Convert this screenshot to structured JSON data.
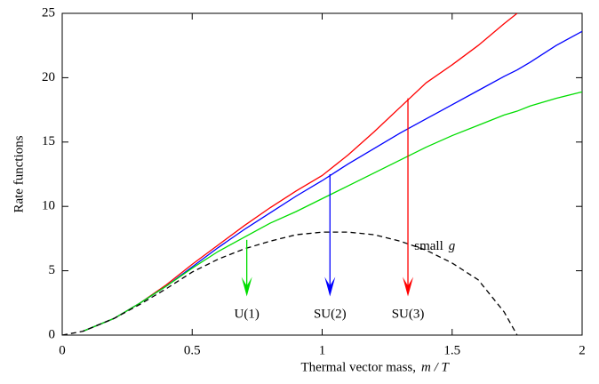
{
  "chart_data": {
    "type": "line",
    "ylabel": "Rate functions",
    "xlabel": "Thermal vector mass,",
    "xlabel_var": "m / T",
    "x": [
      0,
      0.08,
      0.2,
      0.3,
      0.4,
      0.5,
      0.6,
      0.7,
      0.8,
      0.9,
      1.0,
      1.1,
      1.2,
      1.3,
      1.4,
      1.5,
      1.6,
      1.7,
      1.75,
      1.8,
      1.9,
      2.0
    ],
    "series": [
      {
        "name": "SU(3)",
        "color": "#ff0000",
        "dashed": false,
        "values": [
          null,
          0.3,
          1.3,
          2.5,
          3.9,
          5.5,
          7.0,
          8.5,
          9.9,
          11.2,
          12.4,
          14.0,
          15.8,
          17.7,
          19.6,
          21.0,
          22.5,
          24.2,
          25.0,
          null,
          null,
          null
        ]
      },
      {
        "name": "SU(2)",
        "color": "#0000ff",
        "dashed": false,
        "values": [
          null,
          0.3,
          1.3,
          2.5,
          3.8,
          5.3,
          6.8,
          8.2,
          9.5,
          10.8,
          12.0,
          13.3,
          14.5,
          15.7,
          16.8,
          17.9,
          19.0,
          20.1,
          20.6,
          21.2,
          22.5,
          23.6
        ]
      },
      {
        "name": "U(1)",
        "color": "#00dd00",
        "dashed": false,
        "values": [
          null,
          0.3,
          1.3,
          2.5,
          3.8,
          5.2,
          6.5,
          7.6,
          8.7,
          9.6,
          10.6,
          11.6,
          12.6,
          13.6,
          14.6,
          15.5,
          16.3,
          17.1,
          17.4,
          17.8,
          18.4,
          18.9
        ]
      },
      {
        "name": "small g",
        "color": "#000000",
        "dashed": true,
        "values": [
          0,
          0.3,
          1.3,
          2.4,
          3.6,
          4.9,
          5.9,
          6.7,
          7.3,
          7.8,
          8.0,
          8.0,
          7.8,
          7.3,
          6.6,
          5.6,
          4.3,
          1.8,
          0,
          null,
          null,
          null
        ]
      }
    ],
    "arrows": [
      {
        "label": "U(1)",
        "color": "#00dd00",
        "x": 0.71,
        "y_start": 7.4,
        "y_end": 3.0
      },
      {
        "label": "SU(2)",
        "color": "#0000ff",
        "x": 1.03,
        "y_start": 12.5,
        "y_end": 3.0
      },
      {
        "label": "SU(3)",
        "color": "#ff0000",
        "x": 1.33,
        "y_start": 18.4,
        "y_end": 3.0
      }
    ],
    "curve_label": {
      "text": "small",
      "var": "g",
      "x": 1.5,
      "y": 7.0
    },
    "xlim": [
      0,
      2
    ],
    "ylim": [
      0,
      25
    ],
    "xticks": [
      0,
      0.5,
      1,
      1.5,
      2
    ],
    "yticks": [
      0,
      5,
      10,
      15,
      20,
      25
    ]
  }
}
